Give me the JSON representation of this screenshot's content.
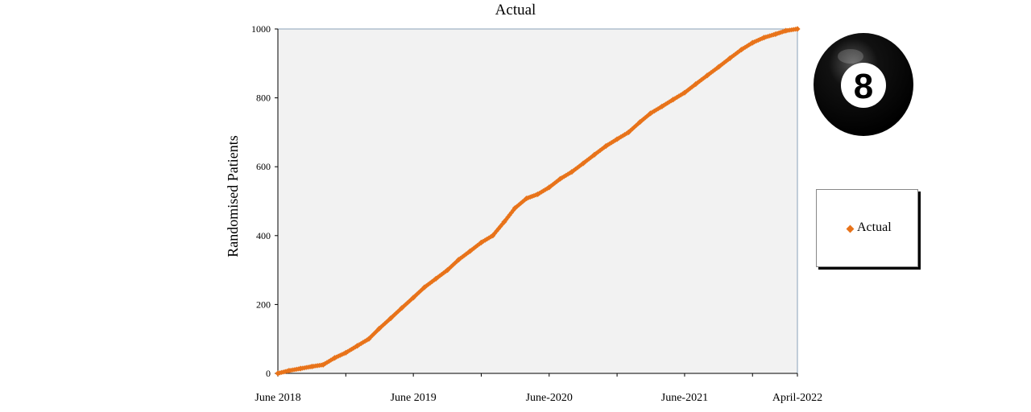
{
  "chart_data": {
    "type": "scatter",
    "title": "Actual",
    "xlabel": "",
    "ylabel": "Randomised Patients",
    "ylim": [
      0,
      1000
    ],
    "yticks": [
      0,
      200,
      400,
      600,
      800,
      1000
    ],
    "xlim": [
      "2018-06-01",
      "2022-04-01"
    ],
    "xtick_labels": [
      {
        "date": "2018-06-01",
        "label": "June 2018"
      },
      {
        "date": "2019-06-01",
        "label": "June 2019"
      },
      {
        "date": "2020-06-01",
        "label": "June-2020"
      },
      {
        "date": "2021-06-01",
        "label": "June-2021"
      },
      {
        "date": "2022-04-01",
        "label": "April-2022"
      }
    ],
    "minor_tick_dates": [
      "2018-12-01",
      "2019-12-01",
      "2020-12-01",
      "2021-12-01"
    ],
    "grid": false,
    "legend_position": "right",
    "plot_background": "#f2f2f2",
    "series": [
      {
        "name": "Actual",
        "color": "#e8731a",
        "marker": "diamond",
        "points": [
          [
            "2018-06-01",
            0
          ],
          [
            "2018-07-01",
            8
          ],
          [
            "2018-08-01",
            14
          ],
          [
            "2018-09-01",
            20
          ],
          [
            "2018-10-01",
            25
          ],
          [
            "2018-11-01",
            45
          ],
          [
            "2018-12-01",
            60
          ],
          [
            "2019-01-01",
            80
          ],
          [
            "2019-02-01",
            100
          ],
          [
            "2019-03-01",
            130
          ],
          [
            "2019-04-01",
            160
          ],
          [
            "2019-05-01",
            190
          ],
          [
            "2019-06-01",
            220
          ],
          [
            "2019-07-01",
            250
          ],
          [
            "2019-08-01",
            275
          ],
          [
            "2019-09-01",
            300
          ],
          [
            "2019-10-01",
            330
          ],
          [
            "2019-11-01",
            355
          ],
          [
            "2019-12-01",
            380
          ],
          [
            "2020-01-01",
            400
          ],
          [
            "2020-02-01",
            440
          ],
          [
            "2020-03-01",
            480
          ],
          [
            "2020-04-01",
            508
          ],
          [
            "2020-05-01",
            520
          ],
          [
            "2020-06-01",
            540
          ],
          [
            "2020-07-01",
            565
          ],
          [
            "2020-08-01",
            585
          ],
          [
            "2020-09-01",
            610
          ],
          [
            "2020-10-01",
            635
          ],
          [
            "2020-11-01",
            660
          ],
          [
            "2020-12-01",
            680
          ],
          [
            "2021-01-01",
            700
          ],
          [
            "2021-02-01",
            730
          ],
          [
            "2021-03-01",
            755
          ],
          [
            "2021-04-01",
            775
          ],
          [
            "2021-05-01",
            795
          ],
          [
            "2021-06-01",
            815
          ],
          [
            "2021-07-01",
            840
          ],
          [
            "2021-08-01",
            865
          ],
          [
            "2021-09-01",
            890
          ],
          [
            "2021-10-01",
            915
          ],
          [
            "2021-11-01",
            940
          ],
          [
            "2021-12-01",
            960
          ],
          [
            "2022-01-01",
            975
          ],
          [
            "2022-02-01",
            985
          ],
          [
            "2022-03-01",
            995
          ],
          [
            "2022-04-01",
            1000
          ]
        ]
      }
    ]
  },
  "legend": {
    "label": "Actual"
  },
  "logo": {
    "name": "eight-ball-icon",
    "text": "8"
  }
}
